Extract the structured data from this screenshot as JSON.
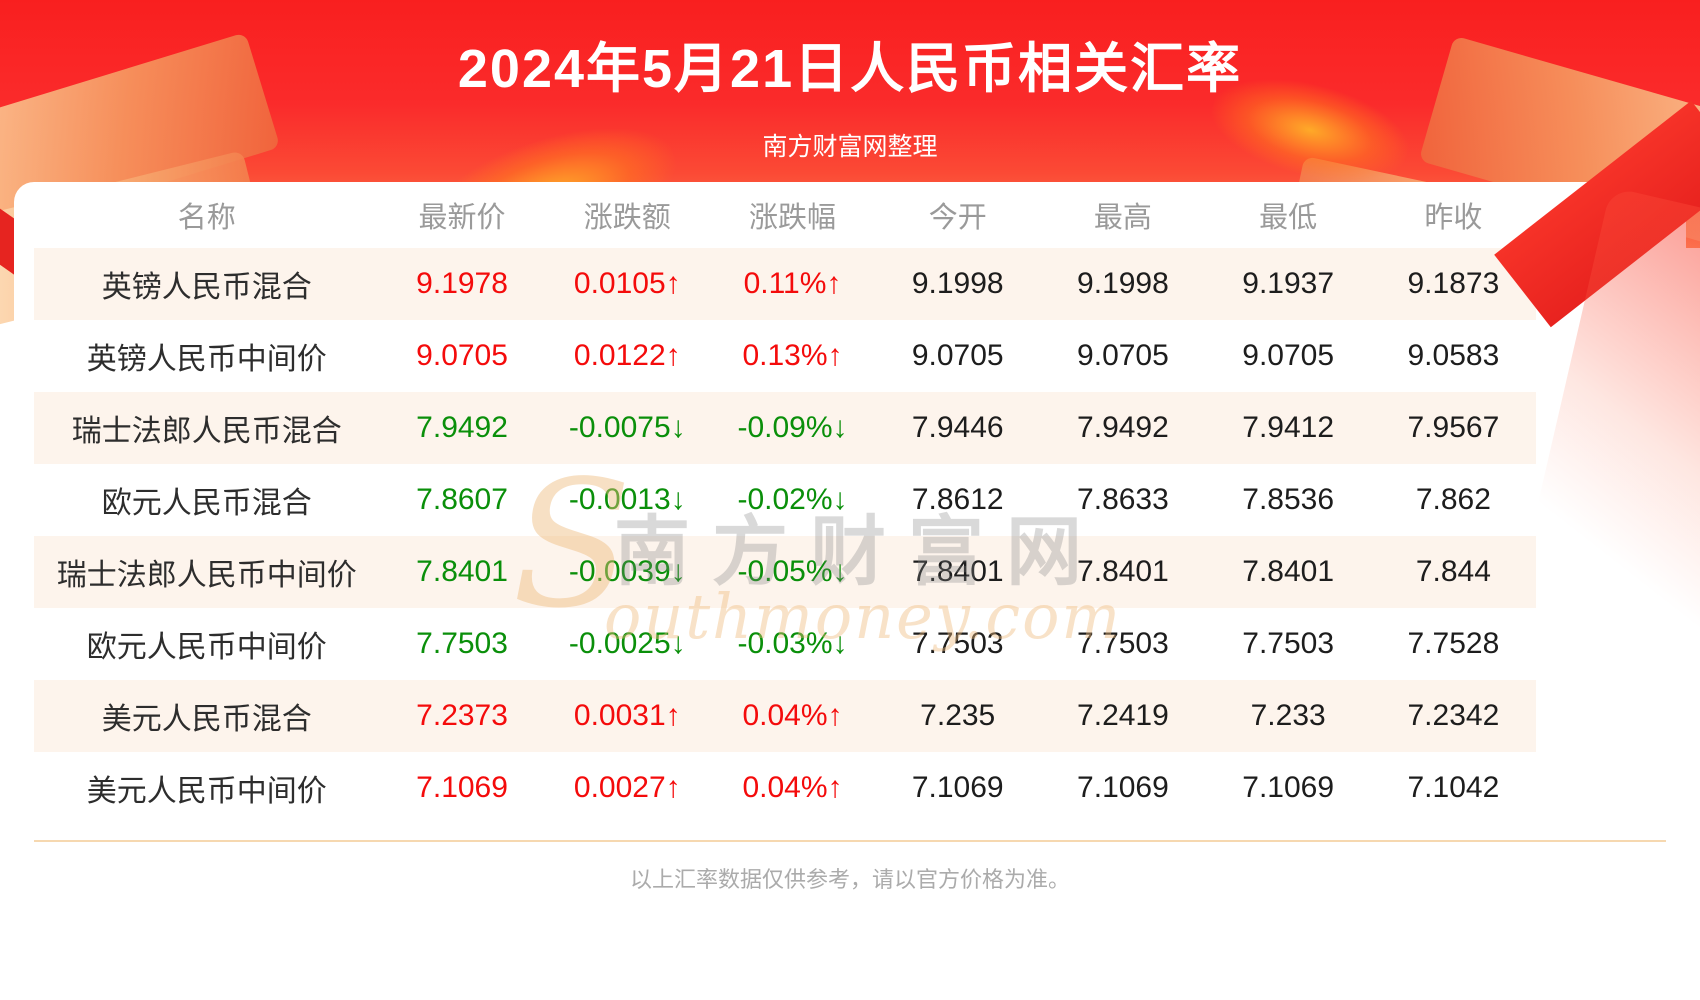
{
  "header": {
    "title": "2024年5月21日人民币相关汇率",
    "subtitle": "南方财富网整理"
  },
  "watermark": {
    "initial": "S",
    "cjk": "南方财富网",
    "latin": "outhmoney.com"
  },
  "footer": {
    "note": "以上汇率数据仅供参考，请以官方价格为准。"
  },
  "colors": {
    "up": "#f40b0b",
    "down": "#0a8f0a",
    "neutral": "#1d1d1d"
  },
  "chart_data": {
    "type": "table",
    "title": "2024年5月21日人民币相关汇率",
    "columns": [
      "名称",
      "最新价",
      "涨跌额",
      "涨跌幅",
      "今开",
      "最高",
      "最低",
      "昨收"
    ],
    "rows": [
      {
        "name": "英镑人民币混合",
        "latest": "9.1978",
        "change": "0.0105↑",
        "pct": "0.11%↑",
        "open": "9.1998",
        "high": "9.1998",
        "low": "9.1937",
        "prev_close": "9.1873",
        "dir": "up"
      },
      {
        "name": "英镑人民币中间价",
        "latest": "9.0705",
        "change": "0.0122↑",
        "pct": "0.13%↑",
        "open": "9.0705",
        "high": "9.0705",
        "low": "9.0705",
        "prev_close": "9.0583",
        "dir": "up"
      },
      {
        "name": "瑞士法郎人民币混合",
        "latest": "7.9492",
        "change": "-0.0075↓",
        "pct": "-0.09%↓",
        "open": "7.9446",
        "high": "7.9492",
        "low": "7.9412",
        "prev_close": "7.9567",
        "dir": "down"
      },
      {
        "name": "欧元人民币混合",
        "latest": "7.8607",
        "change": "-0.0013↓",
        "pct": "-0.02%↓",
        "open": "7.8612",
        "high": "7.8633",
        "low": "7.8536",
        "prev_close": "7.862",
        "dir": "down"
      },
      {
        "name": "瑞士法郎人民币中间价",
        "latest": "7.8401",
        "change": "-0.0039↓",
        "pct": "-0.05%↓",
        "open": "7.8401",
        "high": "7.8401",
        "low": "7.8401",
        "prev_close": "7.844",
        "dir": "down"
      },
      {
        "name": "欧元人民币中间价",
        "latest": "7.7503",
        "change": "-0.0025↓",
        "pct": "-0.03%↓",
        "open": "7.7503",
        "high": "7.7503",
        "low": "7.7503",
        "prev_close": "7.7528",
        "dir": "down"
      },
      {
        "name": "美元人民币混合",
        "latest": "7.2373",
        "change": "0.0031↑",
        "pct": "0.04%↑",
        "open": "7.235",
        "high": "7.2419",
        "low": "7.233",
        "prev_close": "7.2342",
        "dir": "up"
      },
      {
        "name": "美元人民币中间价",
        "latest": "7.1069",
        "change": "0.0027↑",
        "pct": "0.04%↑",
        "open": "7.1069",
        "high": "7.1069",
        "low": "7.1069",
        "prev_close": "7.1042",
        "dir": "up"
      }
    ]
  }
}
